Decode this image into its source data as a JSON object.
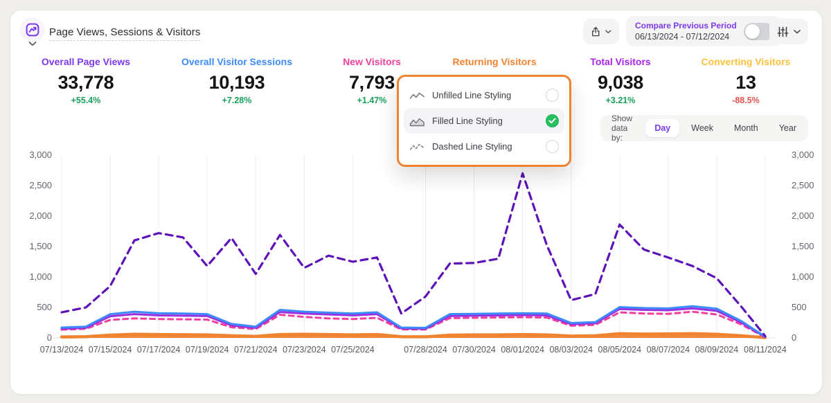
{
  "header": {
    "title": "Page Views, Sessions & Visitors",
    "compare": {
      "label": "Compare Previous Period",
      "range": "06/13/2024 - 07/12/2024",
      "toggle_on": false
    }
  },
  "stats": [
    {
      "label": "Overall Page Views",
      "value": "33,778",
      "delta": "+55.4%",
      "color": "#7c3aed",
      "delta_color": "#18a05a"
    },
    {
      "label": "Overall Visitor Sessions",
      "value": "10,193",
      "delta": "+7.28%",
      "color": "#3d8bf8",
      "delta_color": "#18a05a"
    },
    {
      "label": "New Visitors",
      "value": "7,793",
      "delta": "+1.47%",
      "color": "#ee3f9e",
      "delta_color": "#18a05a"
    },
    {
      "label": "Returning Visitors",
      "value": "",
      "delta": "",
      "color": "#f08330",
      "delta_color": ""
    },
    {
      "label": "Total Visitors",
      "value": "9,038",
      "delta": "+3.21%",
      "color": "#a625ec",
      "delta_color": "#18a05a"
    },
    {
      "label": "Converting Visitors",
      "value": "13",
      "delta": "-88.5%",
      "color": "#fbc23d",
      "delta_color": "#e0564f"
    }
  ],
  "dropdown": {
    "items": [
      {
        "label": "Unfilled Line Styling",
        "icon": "wave-line-icon",
        "selected": false
      },
      {
        "label": "Filled Line Styling",
        "icon": "wave-filled-icon",
        "selected": true
      },
      {
        "label": "Dashed Line Styling",
        "icon": "wave-dashed-icon",
        "selected": false
      }
    ]
  },
  "show_data_by": {
    "label": "Show data by:",
    "options": [
      "Day",
      "Week",
      "Month",
      "Year"
    ],
    "selected": "Day"
  },
  "ui": {
    "background": "#efeeeb",
    "card_bg": "#ffffff",
    "accent": "#7c3aed",
    "control_bg": "#f4f4f5",
    "popup_border": "#f08330",
    "radio_selected": "#27c061",
    "positive": "#18a05a",
    "negative": "#e0564f"
  },
  "chart_data": {
    "type": "line",
    "title": "Page Views, Sessions & Visitors",
    "xlabel": "",
    "ylabel": "",
    "ylim": [
      0,
      3000
    ],
    "yticks": [
      0,
      500,
      1000,
      1500,
      2000,
      2500,
      3000
    ],
    "grid": "vertical",
    "legend": "none",
    "x": [
      "07/13/2024",
      "07/14/2024",
      "07/15/2024",
      "07/16/2024",
      "07/17/2024",
      "07/18/2024",
      "07/19/2024",
      "07/20/2024",
      "07/21/2024",
      "07/22/2024",
      "07/23/2024",
      "07/24/2024",
      "07/25/2024",
      "07/26/2024",
      "07/27/2024",
      "07/28/2024",
      "07/29/2024",
      "07/30/2024",
      "07/31/2024",
      "08/01/2024",
      "08/02/2024",
      "08/03/2024",
      "08/04/2024",
      "08/05/2024",
      "08/06/2024",
      "08/07/2024",
      "08/08/2024",
      "08/09/2024",
      "08/10/2024",
      "08/11/2024"
    ],
    "tick_indices": [
      0,
      2,
      4,
      6,
      8,
      10,
      12,
      15,
      17,
      19,
      21,
      23,
      25,
      27,
      29
    ],
    "series": [
      {
        "name": "Returning Visitors",
        "color": "#f08330",
        "style": "solid",
        "width": 4.5,
        "fill": true,
        "values": [
          15,
          20,
          45,
          60,
          55,
          52,
          50,
          35,
          25,
          55,
          60,
          55,
          50,
          55,
          20,
          18,
          45,
          50,
          50,
          55,
          50,
          30,
          35,
          70,
          62,
          65,
          70,
          60,
          35,
          5
        ]
      },
      {
        "name": "New Visitors",
        "color": "#ee3f9e",
        "style": "dashed",
        "width": 3,
        "fill": false,
        "values": [
          135,
          150,
          295,
          320,
          310,
          305,
          300,
          175,
          145,
          380,
          345,
          320,
          310,
          330,
          140,
          138,
          325,
          330,
          335,
          340,
          335,
          200,
          215,
          420,
          400,
          395,
          430,
          385,
          225,
          10
        ]
      },
      {
        "name": "Total Visitors",
        "color": "#9b2ee0",
        "style": "solid",
        "width": 3,
        "fill": false,
        "values": [
          150,
          165,
          355,
          390,
          370,
          365,
          360,
          205,
          165,
          425,
          400,
          385,
          370,
          390,
          155,
          150,
          360,
          365,
          370,
          375,
          370,
          225,
          240,
          475,
          460,
          455,
          485,
          445,
          255,
          15
        ]
      },
      {
        "name": "Overall Visitor Sessions",
        "color": "#3d8bf8",
        "style": "solid",
        "width": 3,
        "fill": false,
        "values": [
          170,
          185,
          390,
          430,
          405,
          400,
          390,
          230,
          185,
          460,
          430,
          415,
          400,
          420,
          170,
          165,
          390,
          395,
          400,
          405,
          400,
          245,
          260,
          505,
          490,
          485,
          520,
          480,
          280,
          20
        ]
      },
      {
        "name": "Overall Page Views",
        "color": "#5d13b8",
        "style": "dashed-long",
        "width": 3.2,
        "fill": false,
        "values": [
          420,
          500,
          850,
          1600,
          1720,
          1650,
          1180,
          1640,
          1050,
          1690,
          1150,
          1350,
          1250,
          1320,
          400,
          680,
          1220,
          1230,
          1300,
          2700,
          1520,
          620,
          720,
          1860,
          1450,
          1320,
          1180,
          980,
          520,
          30
        ]
      }
    ]
  }
}
